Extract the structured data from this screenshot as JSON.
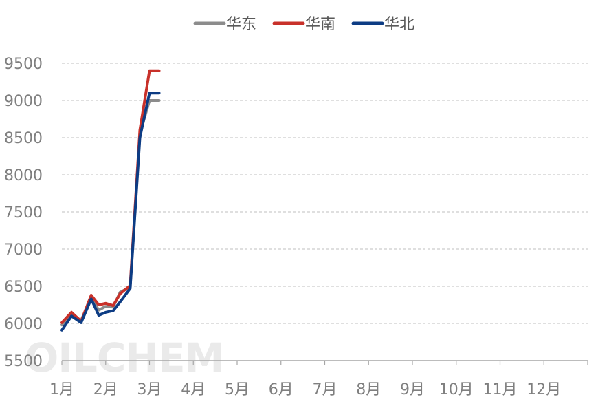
{
  "watermark": "OILCHEM",
  "chart_data": {
    "type": "line",
    "categories": [
      "1月",
      "2月",
      "3月",
      "4月",
      "5月",
      "6月",
      "7月",
      "8月",
      "9月",
      "10月",
      "11月",
      "12月"
    ],
    "ylim": [
      5500,
      9500
    ],
    "yticks": [
      5500,
      6000,
      6500,
      7000,
      7500,
      8000,
      8500,
      9000,
      9500
    ],
    "grid": true,
    "legend_position": "top-center",
    "series": [
      {
        "name": "华东",
        "color": "#8c8c8c",
        "x": [
          0,
          0.22,
          0.44,
          0.67,
          0.84,
          1.0,
          1.17,
          1.33,
          1.56,
          1.78,
          2.0,
          2.22
        ],
        "values": [
          5980,
          6120,
          6040,
          6350,
          6180,
          6230,
          6220,
          6420,
          6490,
          8550,
          9000,
          9000
        ]
      },
      {
        "name": "华南",
        "color": "#c8312a",
        "x": [
          0,
          0.22,
          0.44,
          0.67,
          0.84,
          1.0,
          1.17,
          1.33,
          1.56,
          1.78,
          2.0,
          2.22
        ],
        "values": [
          6010,
          6150,
          6030,
          6380,
          6250,
          6270,
          6240,
          6400,
          6510,
          8600,
          9400,
          9400
        ]
      },
      {
        "name": "华北",
        "color": "#0d3c84",
        "x": [
          0,
          0.22,
          0.44,
          0.67,
          0.84,
          1.0,
          1.17,
          1.33,
          1.56,
          1.78,
          2.0,
          2.22
        ],
        "values": [
          5910,
          6100,
          6010,
          6330,
          6110,
          6150,
          6170,
          6290,
          6470,
          8500,
          9100,
          9100
        ]
      }
    ]
  }
}
